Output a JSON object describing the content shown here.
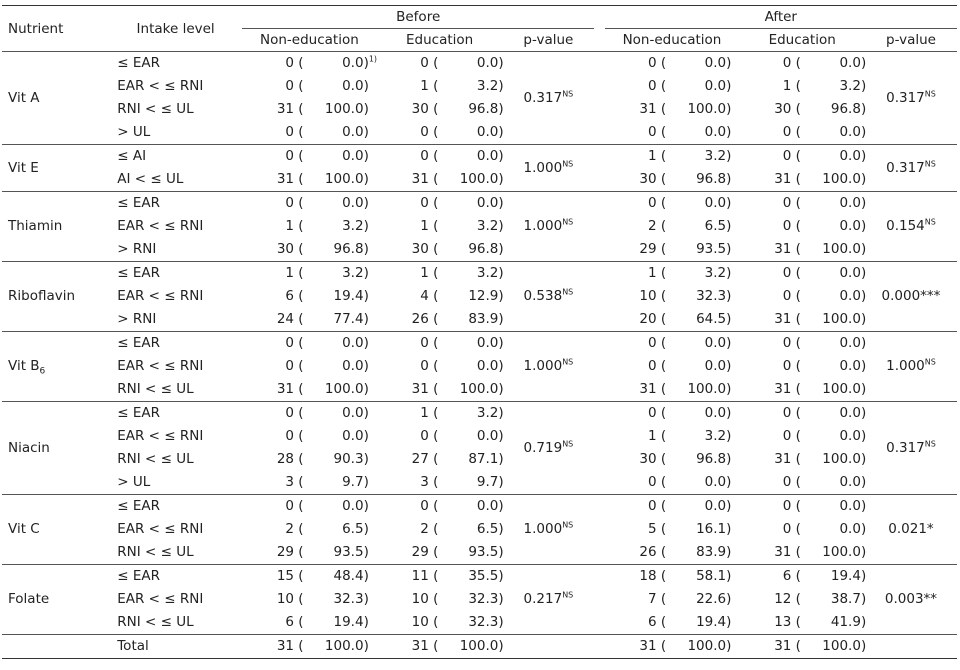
{
  "headers": {
    "nutrient": "Nutrient",
    "intake": "Intake level",
    "before": "Before",
    "after": "After",
    "non_education": "Non-education",
    "education": "Education",
    "pvalue": "p-value"
  },
  "groups": [
    {
      "nutrient": "Vit A",
      "sub": "",
      "p_before": "0.317",
      "p_before_sup": "NS",
      "p_after": "0.317",
      "p_after_sup": "NS",
      "rows": [
        {
          "level": "≤ EAR",
          "bne": [
            "0",
            "0.0"
          ],
          "bne_sup": "1)",
          "be": [
            "0",
            "0.0"
          ],
          "ane": [
            "0",
            "0.0"
          ],
          "ae": [
            "0",
            "0.0"
          ]
        },
        {
          "level": "EAR < ≤ RNI",
          "bne": [
            "0",
            "0.0"
          ],
          "be": [
            "1",
            "3.2"
          ],
          "ane": [
            "0",
            "0.0"
          ],
          "ae": [
            "1",
            "3.2"
          ]
        },
        {
          "level": "RNI < ≤ UL",
          "bne": [
            "31",
            "100.0"
          ],
          "be": [
            "30",
            "96.8"
          ],
          "ane": [
            "31",
            "100.0"
          ],
          "ae": [
            "30",
            "96.8"
          ]
        },
        {
          "level": "> UL",
          "bne": [
            "0",
            "0.0"
          ],
          "be": [
            "0",
            "0.0"
          ],
          "ane": [
            "0",
            "0.0"
          ],
          "ae": [
            "0",
            "0.0"
          ]
        }
      ]
    },
    {
      "nutrient": "Vit E",
      "sub": "",
      "p_before": "1.000",
      "p_before_sup": "NS",
      "p_after": "0.317",
      "p_after_sup": "NS",
      "rows": [
        {
          "level": "≤ AI",
          "bne": [
            "0",
            "0.0"
          ],
          "be": [
            "0",
            "0.0"
          ],
          "ane": [
            "1",
            "3.2"
          ],
          "ae": [
            "0",
            "0.0"
          ]
        },
        {
          "level": "AI < ≤ UL",
          "bne": [
            "31",
            "100.0"
          ],
          "be": [
            "31",
            "100.0"
          ],
          "ane": [
            "30",
            "96.8"
          ],
          "ae": [
            "31",
            "100.0"
          ]
        }
      ]
    },
    {
      "nutrient": "Thiamin",
      "sub": "",
      "p_before": "1.000",
      "p_before_sup": "NS",
      "p_after": "0.154",
      "p_after_sup": "NS",
      "rows": [
        {
          "level": "≤ EAR",
          "bne": [
            "0",
            "0.0"
          ],
          "be": [
            "0",
            "0.0"
          ],
          "ane": [
            "0",
            "0.0"
          ],
          "ae": [
            "0",
            "0.0"
          ]
        },
        {
          "level": "EAR < ≤ RNI",
          "bne": [
            "1",
            "3.2"
          ],
          "be": [
            "1",
            "3.2"
          ],
          "ane": [
            "2",
            "6.5"
          ],
          "ae": [
            "0",
            "0.0"
          ]
        },
        {
          "level": "> RNI",
          "bne": [
            "30",
            "96.8"
          ],
          "be": [
            "30",
            "96.8"
          ],
          "ane": [
            "29",
            "93.5"
          ],
          "ae": [
            "31",
            "100.0"
          ]
        }
      ]
    },
    {
      "nutrient": "Riboflavin",
      "sub": "",
      "p_before": "0.538",
      "p_before_sup": "NS",
      "p_after": "0.000***",
      "p_after_sup": "",
      "rows": [
        {
          "level": "≤ EAR",
          "bne": [
            "1",
            "3.2"
          ],
          "be": [
            "1",
            "3.2"
          ],
          "ane": [
            "1",
            "3.2"
          ],
          "ae": [
            "0",
            "0.0"
          ]
        },
        {
          "level": "EAR < ≤ RNI",
          "bne": [
            "6",
            "19.4"
          ],
          "be": [
            "4",
            "12.9"
          ],
          "ane": [
            "10",
            "32.3"
          ],
          "ae": [
            "0",
            "0.0"
          ]
        },
        {
          "level": "> RNI",
          "bne": [
            "24",
            "77.4"
          ],
          "be": [
            "26",
            "83.9"
          ],
          "ane": [
            "20",
            "64.5"
          ],
          "ae": [
            "31",
            "100.0"
          ]
        }
      ]
    },
    {
      "nutrient": "Vit B",
      "sub": "6",
      "p_before": "1.000",
      "p_before_sup": "NS",
      "p_after": "1.000",
      "p_after_sup": "NS",
      "rows": [
        {
          "level": "≤ EAR",
          "bne": [
            "0",
            "0.0"
          ],
          "be": [
            "0",
            "0.0"
          ],
          "ane": [
            "0",
            "0.0"
          ],
          "ae": [
            "0",
            "0.0"
          ]
        },
        {
          "level": "EAR < ≤ RNI",
          "bne": [
            "0",
            "0.0"
          ],
          "be": [
            "0",
            "0.0"
          ],
          "ane": [
            "0",
            "0.0"
          ],
          "ae": [
            "0",
            "0.0"
          ]
        },
        {
          "level": "RNI < ≤ UL",
          "bne": [
            "31",
            "100.0"
          ],
          "be": [
            "31",
            "100.0"
          ],
          "ane": [
            "31",
            "100.0"
          ],
          "ae": [
            "31",
            "100.0"
          ]
        }
      ]
    },
    {
      "nutrient": "Niacin",
      "sub": "",
      "p_before": "0.719",
      "p_before_sup": "NS",
      "p_after": "0.317",
      "p_after_sup": "NS",
      "rows": [
        {
          "level": "≤ EAR",
          "bne": [
            "0",
            "0.0"
          ],
          "be": [
            "1",
            "3.2"
          ],
          "ane": [
            "0",
            "0.0"
          ],
          "ae": [
            "0",
            "0.0"
          ]
        },
        {
          "level": "EAR < ≤ RNI",
          "bne": [
            "0",
            "0.0"
          ],
          "be": [
            "0",
            "0.0"
          ],
          "ane": [
            "1",
            "3.2"
          ],
          "ae": [
            "0",
            "0.0"
          ]
        },
        {
          "level": "RNI < ≤ UL",
          "bne": [
            "28",
            "90.3"
          ],
          "be": [
            "27",
            "87.1"
          ],
          "ane": [
            "30",
            "96.8"
          ],
          "ae": [
            "31",
            "100.0"
          ]
        },
        {
          "level": "> UL",
          "bne": [
            "3",
            "9.7"
          ],
          "be": [
            "3",
            "9.7"
          ],
          "ane": [
            "0",
            "0.0"
          ],
          "ae": [
            "0",
            "0.0"
          ]
        }
      ]
    },
    {
      "nutrient": "Vit C",
      "sub": "",
      "p_before": "1.000",
      "p_before_sup": "NS",
      "p_after": "0.021*",
      "p_after_sup": "",
      "rows": [
        {
          "level": "≤ EAR",
          "bne": [
            "0",
            "0.0"
          ],
          "be": [
            "0",
            "0.0"
          ],
          "ane": [
            "0",
            "0.0"
          ],
          "ae": [
            "0",
            "0.0"
          ]
        },
        {
          "level": "EAR < ≤ RNI",
          "bne": [
            "2",
            "6.5"
          ],
          "be": [
            "2",
            "6.5"
          ],
          "ane": [
            "5",
            "16.1"
          ],
          "ae": [
            "0",
            "0.0"
          ]
        },
        {
          "level": "RNI < ≤ UL",
          "bne": [
            "29",
            "93.5"
          ],
          "be": [
            "29",
            "93.5"
          ],
          "ane": [
            "26",
            "83.9"
          ],
          "ae": [
            "31",
            "100.0"
          ]
        }
      ]
    },
    {
      "nutrient": "Folate",
      "sub": "",
      "p_before": "0.217",
      "p_before_sup": "NS",
      "p_after": "0.003**",
      "p_after_sup": "",
      "rows": [
        {
          "level": "≤ EAR",
          "bne": [
            "15",
            "48.4"
          ],
          "be": [
            "11",
            "35.5"
          ],
          "ane": [
            "18",
            "58.1"
          ],
          "ae": [
            "6",
            "19.4"
          ]
        },
        {
          "level": "EAR < ≤ RNI",
          "bne": [
            "10",
            "32.3"
          ],
          "be": [
            "10",
            "32.3"
          ],
          "ane": [
            "7",
            "22.6"
          ],
          "ae": [
            "12",
            "38.7"
          ]
        },
        {
          "level": "RNI < ≤ UL",
          "bne": [
            "6",
            "19.4"
          ],
          "be": [
            "10",
            "32.3"
          ],
          "ane": [
            "6",
            "19.4"
          ],
          "ae": [
            "13",
            "41.9"
          ]
        }
      ]
    }
  ],
  "total": {
    "label": "Total",
    "bne": [
      "31",
      "100.0"
    ],
    "be": [
      "31",
      "100.0"
    ],
    "ane": [
      "31",
      "100.0"
    ],
    "ae": [
      "31",
      "100.0"
    ]
  }
}
